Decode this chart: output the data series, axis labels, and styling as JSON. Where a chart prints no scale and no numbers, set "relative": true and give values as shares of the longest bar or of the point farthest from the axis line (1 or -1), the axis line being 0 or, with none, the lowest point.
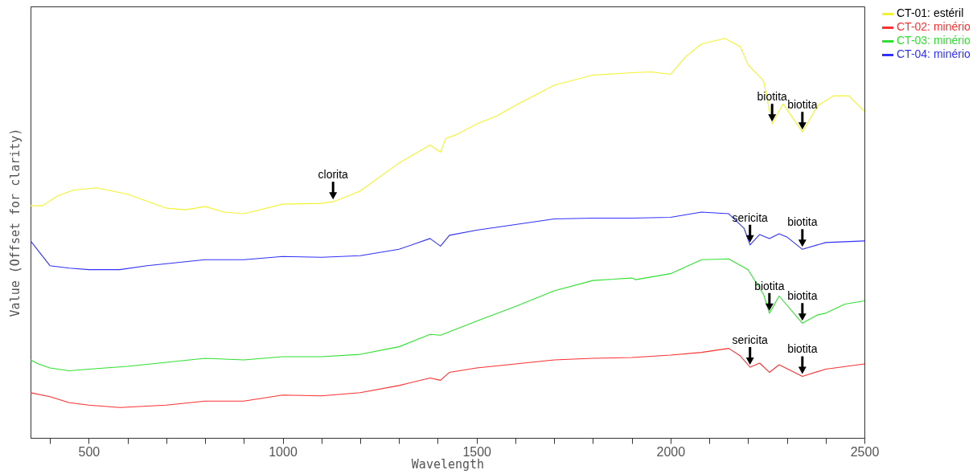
{
  "chart_data": {
    "type": "line",
    "xlabel": "Wavelength",
    "ylabel": "Value (Offset for clarity)",
    "relative": true,
    "legend": "top right",
    "grid": false,
    "xlim": [
      350,
      2500
    ],
    "xticks": [
      {
        "value": 400,
        "label": null
      },
      500,
      {
        "value": 600,
        "label": null
      },
      {
        "value": 700,
        "label": null
      },
      {
        "value": 800,
        "label": null
      },
      {
        "value": 900,
        "label": null
      },
      1000,
      {
        "value": 1100,
        "label": null
      },
      {
        "value": 1200,
        "label": null
      },
      {
        "value": 1300,
        "label": null
      },
      {
        "value": 1400,
        "label": null
      },
      1500,
      {
        "value": 1600,
        "label": null
      },
      {
        "value": 1700,
        "label": null
      },
      {
        "value": 1800,
        "label": null
      },
      {
        "value": 1900,
        "label": null
      },
      2000,
      {
        "value": 2100,
        "label": null
      },
      {
        "value": 2200,
        "label": null
      },
      {
        "value": 2300,
        "label": null
      },
      {
        "value": 2400,
        "label": null
      },
      2500
    ],
    "series": [
      {
        "name": "CT-01: estéril",
        "color": "#f2f230",
        "x": [
          350,
          380,
          420,
          460,
          520,
          600,
          700,
          750,
          800,
          850,
          900,
          1000,
          1100,
          1130,
          1200,
          1300,
          1380,
          1407,
          1420,
          1450,
          1500,
          1550,
          1600,
          1700,
          1800,
          1900,
          1950,
          2000,
          2040,
          2080,
          2140,
          2180,
          2200,
          2240,
          2262,
          2290,
          2340,
          2380,
          2420,
          2460,
          2500
        ],
        "values": [
          0.581,
          0.581,
          0.606,
          0.62,
          0.626,
          0.61,
          0.575,
          0.571,
          0.579,
          0.565,
          0.561,
          0.585,
          0.587,
          0.591,
          0.618,
          0.688,
          0.733,
          0.715,
          0.749,
          0.76,
          0.786,
          0.805,
          0.832,
          0.883,
          0.908,
          0.914,
          0.916,
          0.91,
          0.955,
          0.986,
          1,
          0.979,
          0.934,
          0.893,
          0.786,
          0.836,
          0.766,
          0.832,
          0.856,
          0.856,
          0.817
        ]
      },
      {
        "name": "CT-02: minério",
        "color": "#ff3030",
        "x": [
          350,
          400,
          450,
          500,
          580,
          700,
          800,
          900,
          1000,
          1100,
          1200,
          1300,
          1380,
          1407,
          1430,
          1500,
          1600,
          1700,
          1800,
          1900,
          2000,
          2080,
          2150,
          2180,
          2205,
          2230,
          2255,
          2280,
          2340,
          2400,
          2500
        ],
        "values": [
          0.113,
          0.103,
          0.088,
          0.082,
          0.076,
          0.082,
          0.092,
          0.092,
          0.107,
          0.105,
          0.113,
          0.131,
          0.15,
          0.144,
          0.164,
          0.175,
          0.185,
          0.195,
          0.199,
          0.201,
          0.207,
          0.214,
          0.224,
          0.205,
          0.177,
          0.187,
          0.164,
          0.183,
          0.154,
          0.172,
          0.185
        ]
      },
      {
        "name": "CT-03: minério",
        "color": "#30e030",
        "x": [
          350,
          370,
          400,
          450,
          500,
          600,
          800,
          900,
          1000,
          1100,
          1200,
          1300,
          1380,
          1407,
          1500,
          1600,
          1700,
          1800,
          1900,
          1910,
          2000,
          2080,
          2150,
          2200,
          2240,
          2255,
          2280,
          2340,
          2380,
          2400,
          2450,
          2500
        ],
        "values": [
          0.195,
          0.185,
          0.175,
          0.168,
          0.172,
          0.179,
          0.199,
          0.195,
          0.203,
          0.203,
          0.209,
          0.228,
          0.259,
          0.257,
          0.292,
          0.329,
          0.368,
          0.394,
          0.4,
          0.396,
          0.411,
          0.446,
          0.448,
          0.421,
          0.359,
          0.312,
          0.355,
          0.287,
          0.308,
          0.312,
          0.335,
          0.343
        ]
      },
      {
        "name": "CT-04: minério",
        "color": "#3030ff",
        "x": [
          350,
          400,
          450,
          500,
          580,
          650,
          800,
          900,
          1000,
          1100,
          1200,
          1300,
          1380,
          1407,
          1430,
          1500,
          1600,
          1700,
          1800,
          1900,
          2000,
          2080,
          2150,
          2190,
          2205,
          2230,
          2255,
          2280,
          2300,
          2340,
          2400,
          2450,
          2500
        ],
        "values": [
          0.493,
          0.431,
          0.425,
          0.421,
          0.421,
          0.431,
          0.446,
          0.446,
          0.454,
          0.452,
          0.456,
          0.472,
          0.499,
          0.48,
          0.507,
          0.52,
          0.534,
          0.548,
          0.55,
          0.55,
          0.552,
          0.565,
          0.561,
          0.524,
          0.483,
          0.509,
          0.499,
          0.511,
          0.503,
          0.472,
          0.489,
          0.491,
          0.493
        ]
      }
    ],
    "annotations": [
      {
        "text": "clorita",
        "x": 1130,
        "y": 0.591
      },
      {
        "text": "biotita",
        "x": 2262,
        "y": 0.786
      },
      {
        "text": "biotita",
        "x": 2340,
        "y": 0.766
      },
      {
        "text": "sericita",
        "x": 2205,
        "y": 0.483
      },
      {
        "text": "biotita",
        "x": 2340,
        "y": 0.472
      },
      {
        "text": "biotita",
        "x": 2255,
        "y": 0.312
      },
      {
        "text": "biotita",
        "x": 2340,
        "y": 0.287
      },
      {
        "text": "sericita",
        "x": 2205,
        "y": 0.177
      },
      {
        "text": "biotita",
        "x": 2340,
        "y": 0.154
      }
    ]
  }
}
